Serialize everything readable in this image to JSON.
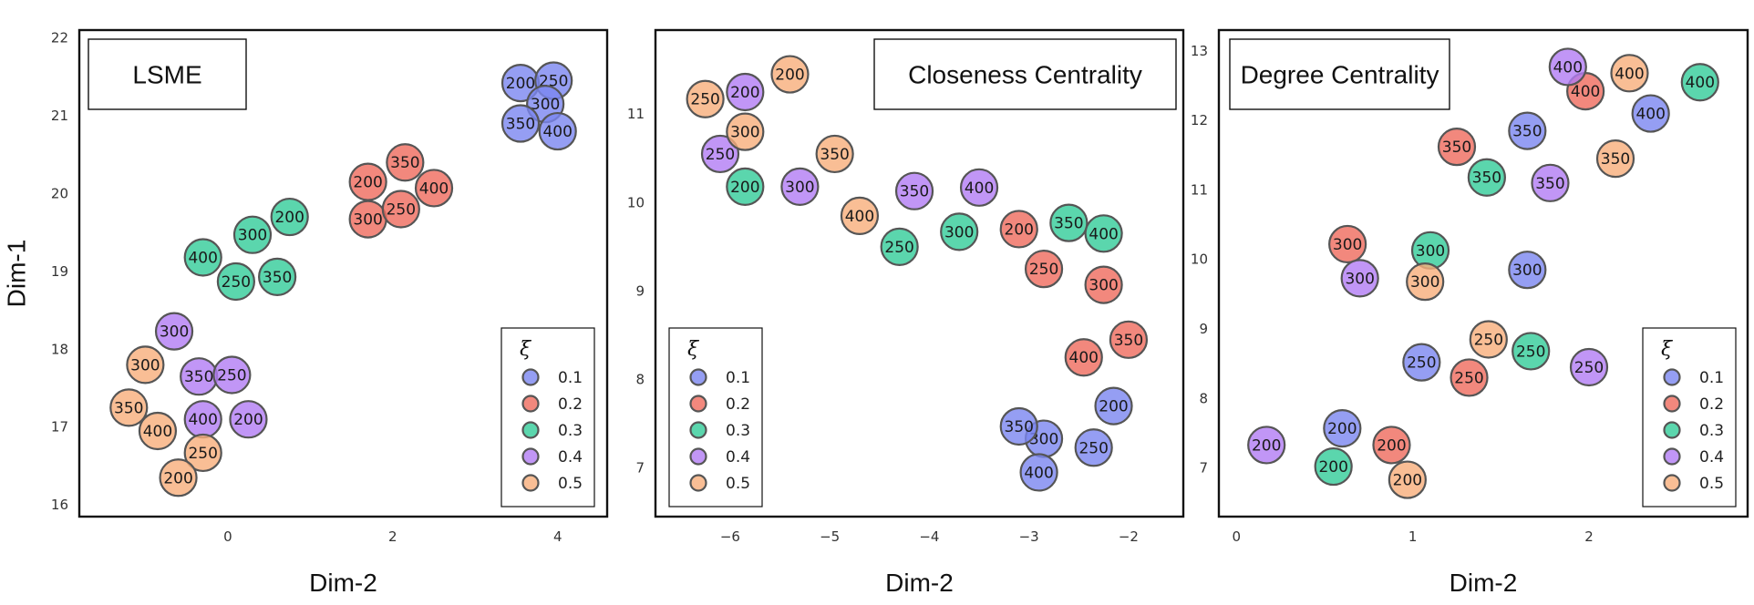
{
  "colors": {
    "0.1": "#7b86f0",
    "0.2": "#ef6a5c",
    "0.3": "#32cc98",
    "0.4": "#b27cf4",
    "0.5": "#f7ae7a"
  },
  "legend": {
    "title": "ξ",
    "labels": [
      "0.1",
      "0.2",
      "0.3",
      "0.4",
      "0.5"
    ]
  },
  "chart_data": [
    {
      "type": "scatter",
      "title": "LSME",
      "xlabel": "Dim-2",
      "ylabel": "Dim-1",
      "xlim": [
        -1.8,
        4.6
      ],
      "ylim": [
        15.85,
        22.1
      ],
      "xticks": [
        0,
        2,
        4
      ],
      "yticks": [
        16,
        17,
        18,
        19,
        20,
        21,
        22
      ],
      "title_position": "top-left",
      "legend_position": "bottom-right",
      "points": [
        {
          "x": 3.55,
          "y": 21.42,
          "xi": "0.1",
          "label": "200"
        },
        {
          "x": 3.95,
          "y": 21.45,
          "xi": "0.1",
          "label": "250"
        },
        {
          "x": 3.85,
          "y": 21.15,
          "xi": "0.1",
          "label": "300"
        },
        {
          "x": 3.55,
          "y": 20.9,
          "xi": "0.1",
          "label": "350"
        },
        {
          "x": 4.0,
          "y": 20.8,
          "xi": "0.1",
          "label": "400"
        },
        {
          "x": 1.7,
          "y": 20.15,
          "xi": "0.2",
          "label": "200"
        },
        {
          "x": 2.15,
          "y": 20.4,
          "xi": "0.2",
          "label": "350"
        },
        {
          "x": 2.5,
          "y": 20.07,
          "xi": "0.2",
          "label": "400"
        },
        {
          "x": 1.7,
          "y": 19.67,
          "xi": "0.2",
          "label": "300"
        },
        {
          "x": 2.1,
          "y": 19.8,
          "xi": "0.2",
          "label": "250"
        },
        {
          "x": 0.75,
          "y": 19.7,
          "xi": "0.3",
          "label": "200"
        },
        {
          "x": 0.3,
          "y": 19.47,
          "xi": "0.3",
          "label": "300"
        },
        {
          "x": -0.3,
          "y": 19.18,
          "xi": "0.3",
          "label": "400"
        },
        {
          "x": 0.1,
          "y": 18.87,
          "xi": "0.3",
          "label": "250"
        },
        {
          "x": 0.6,
          "y": 18.93,
          "xi": "0.3",
          "label": "350"
        },
        {
          "x": -0.65,
          "y": 18.23,
          "xi": "0.4",
          "label": "300"
        },
        {
          "x": -0.35,
          "y": 17.65,
          "xi": "0.4",
          "label": "350"
        },
        {
          "x": 0.05,
          "y": 17.67,
          "xi": "0.4",
          "label": "250"
        },
        {
          "x": -0.3,
          "y": 17.1,
          "xi": "0.4",
          "label": "400"
        },
        {
          "x": 0.25,
          "y": 17.1,
          "xi": "0.4",
          "label": "200"
        },
        {
          "x": -1.0,
          "y": 17.8,
          "xi": "0.5",
          "label": "300"
        },
        {
          "x": -1.2,
          "y": 17.25,
          "xi": "0.5",
          "label": "350"
        },
        {
          "x": -0.85,
          "y": 16.95,
          "xi": "0.5",
          "label": "400"
        },
        {
          "x": -0.3,
          "y": 16.67,
          "xi": "0.5",
          "label": "250"
        },
        {
          "x": -0.6,
          "y": 16.35,
          "xi": "0.5",
          "label": "200"
        }
      ]
    },
    {
      "type": "scatter",
      "title": "Closeness Centrality",
      "xlabel": "Dim-2",
      "ylabel": "",
      "xlim": [
        -6.75,
        -1.45
      ],
      "ylim": [
        6.45,
        11.95
      ],
      "xticks": [
        -6,
        -5,
        -4,
        -3,
        -2
      ],
      "xtick_labels": [
        "−6",
        "−5",
        "−4",
        "−3",
        "−2"
      ],
      "yticks": [
        7,
        8,
        9,
        10,
        11
      ],
      "title_position": "top-right",
      "legend_position": "bottom-left",
      "points": [
        {
          "x": -2.15,
          "y": 7.7,
          "xi": "0.1",
          "label": "200"
        },
        {
          "x": -2.85,
          "y": 7.33,
          "xi": "0.1",
          "label": "300"
        },
        {
          "x": -3.1,
          "y": 7.47,
          "xi": "0.1",
          "label": "350"
        },
        {
          "x": -2.35,
          "y": 7.23,
          "xi": "0.1",
          "label": "250"
        },
        {
          "x": -2.9,
          "y": 6.95,
          "xi": "0.1",
          "label": "400"
        },
        {
          "x": -3.1,
          "y": 9.7,
          "xi": "0.2",
          "label": "200"
        },
        {
          "x": -2.85,
          "y": 9.25,
          "xi": "0.2",
          "label": "250"
        },
        {
          "x": -2.25,
          "y": 9.07,
          "xi": "0.2",
          "label": "300"
        },
        {
          "x": -2.45,
          "y": 8.25,
          "xi": "0.2",
          "label": "400"
        },
        {
          "x": -2.0,
          "y": 8.45,
          "xi": "0.2",
          "label": "350"
        },
        {
          "x": -5.85,
          "y": 10.18,
          "xi": "0.3",
          "label": "200"
        },
        {
          "x": -4.3,
          "y": 9.5,
          "xi": "0.3",
          "label": "250"
        },
        {
          "x": -3.7,
          "y": 9.67,
          "xi": "0.3",
          "label": "300"
        },
        {
          "x": -2.6,
          "y": 9.77,
          "xi": "0.3",
          "label": "350"
        },
        {
          "x": -2.25,
          "y": 9.65,
          "xi": "0.3",
          "label": "400"
        },
        {
          "x": -5.85,
          "y": 11.25,
          "xi": "0.4",
          "label": "200"
        },
        {
          "x": -6.1,
          "y": 10.55,
          "xi": "0.4",
          "label": "250"
        },
        {
          "x": -5.3,
          "y": 10.18,
          "xi": "0.4",
          "label": "300"
        },
        {
          "x": -4.15,
          "y": 10.13,
          "xi": "0.4",
          "label": "350"
        },
        {
          "x": -3.5,
          "y": 10.17,
          "xi": "0.4",
          "label": "400"
        },
        {
          "x": -5.4,
          "y": 11.45,
          "xi": "0.5",
          "label": "200"
        },
        {
          "x": -6.25,
          "y": 11.17,
          "xi": "0.5",
          "label": "250"
        },
        {
          "x": -5.85,
          "y": 10.8,
          "xi": "0.5",
          "label": "300"
        },
        {
          "x": -4.95,
          "y": 10.55,
          "xi": "0.5",
          "label": "350"
        },
        {
          "x": -4.7,
          "y": 9.85,
          "xi": "0.5",
          "label": "400"
        }
      ]
    },
    {
      "type": "scatter",
      "title": "Degree Centrality",
      "xlabel": "Dim-2",
      "ylabel": "",
      "xlim": [
        -0.1,
        2.9
      ],
      "ylim": [
        6.3,
        13.3
      ],
      "xticks": [
        0,
        1,
        2
      ],
      "yticks": [
        7,
        8,
        9,
        10,
        11,
        12,
        13
      ],
      "title_position": "top-left",
      "legend_position": "bottom-right",
      "points": [
        {
          "x": 1.65,
          "y": 11.85,
          "xi": "0.1",
          "label": "350"
        },
        {
          "x": 2.35,
          "y": 12.1,
          "xi": "0.1",
          "label": "400"
        },
        {
          "x": 1.65,
          "y": 9.85,
          "xi": "0.1",
          "label": "300"
        },
        {
          "x": 1.05,
          "y": 8.52,
          "xi": "0.1",
          "label": "250"
        },
        {
          "x": 0.6,
          "y": 7.57,
          "xi": "0.1",
          "label": "200"
        },
        {
          "x": 1.25,
          "y": 11.62,
          "xi": "0.2",
          "label": "350"
        },
        {
          "x": 1.98,
          "y": 12.42,
          "xi": "0.2",
          "label": "400"
        },
        {
          "x": 0.63,
          "y": 10.22,
          "xi": "0.2",
          "label": "300"
        },
        {
          "x": 1.32,
          "y": 8.3,
          "xi": "0.2",
          "label": "250"
        },
        {
          "x": 0.88,
          "y": 7.33,
          "xi": "0.2",
          "label": "200"
        },
        {
          "x": 2.63,
          "y": 12.55,
          "xi": "0.3",
          "label": "400"
        },
        {
          "x": 1.42,
          "y": 11.18,
          "xi": "0.3",
          "label": "350"
        },
        {
          "x": 1.1,
          "y": 10.13,
          "xi": "0.3",
          "label": "300"
        },
        {
          "x": 1.67,
          "y": 8.68,
          "xi": "0.3",
          "label": "250"
        },
        {
          "x": 0.55,
          "y": 7.02,
          "xi": "0.3",
          "label": "200"
        },
        {
          "x": 1.88,
          "y": 12.77,
          "xi": "0.4",
          "label": "400"
        },
        {
          "x": 1.78,
          "y": 11.1,
          "xi": "0.4",
          "label": "350"
        },
        {
          "x": 0.7,
          "y": 9.73,
          "xi": "0.4",
          "label": "300"
        },
        {
          "x": 2.0,
          "y": 8.45,
          "xi": "0.4",
          "label": "250"
        },
        {
          "x": 0.17,
          "y": 7.33,
          "xi": "0.4",
          "label": "200"
        },
        {
          "x": 2.23,
          "y": 12.68,
          "xi": "0.5",
          "label": "400"
        },
        {
          "x": 2.15,
          "y": 11.45,
          "xi": "0.5",
          "label": "350"
        },
        {
          "x": 1.07,
          "y": 9.68,
          "xi": "0.5",
          "label": "300"
        },
        {
          "x": 1.43,
          "y": 8.85,
          "xi": "0.5",
          "label": "250"
        },
        {
          "x": 0.97,
          "y": 6.83,
          "xi": "0.5",
          "label": "200"
        }
      ]
    }
  ]
}
